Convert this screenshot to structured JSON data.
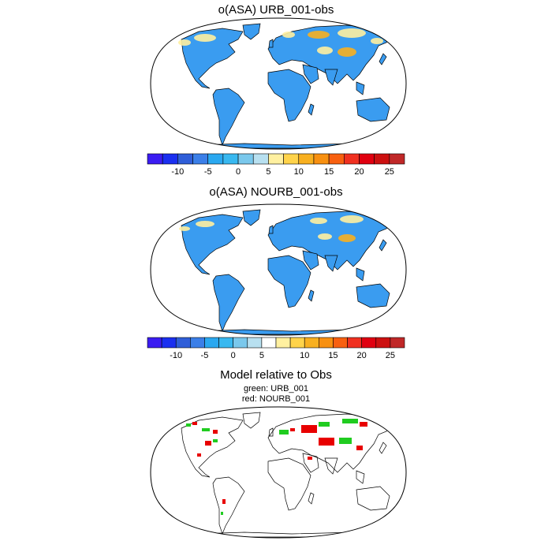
{
  "panels": [
    {
      "title": "o(ASA) URB_001-obs"
    },
    {
      "title": "o(ASA) NOURB_001-obs"
    }
  ],
  "comparison": {
    "title": "Model relative to Obs",
    "legend_green": "green: URB_001",
    "legend_red": "red: NOURB_001"
  },
  "colorbar": {
    "labels": [
      "-10",
      "-5",
      "0",
      "5",
      "10",
      "15",
      "20",
      "25"
    ],
    "colors": [
      "#3b1cf2",
      "#1a2ff0",
      "#2f5ed8",
      "#3b7fe8",
      "#2aa8f0",
      "#38b8f0",
      "#7ac8ec",
      "#b8e0f0",
      "#fff0a0",
      "#ffd34a",
      "#f8b020",
      "#f89010",
      "#f86010",
      "#f03020",
      "#e00010",
      "#cc1010",
      "#c02828"
    ],
    "colors2": [
      "#3b1cf2",
      "#1a2ff0",
      "#2f5ed8",
      "#3b7fe8",
      "#2aa8f0",
      "#38b8f0",
      "#7ac8ec",
      "#b8e0f0",
      "#ffffff",
      "#fff0a0",
      "#ffd34a",
      "#f8b020",
      "#f89010",
      "#f86010",
      "#f03020",
      "#e00010",
      "#cc1010",
      "#c02828"
    ]
  },
  "colors": {
    "ocean": "#ffffff",
    "land_base": "#3a9cf0",
    "coast": "#000000",
    "warm_yellow": "#fff0a0",
    "warm_orange": "#f8b020",
    "green": "#20cc20",
    "red": "#e80000"
  }
}
